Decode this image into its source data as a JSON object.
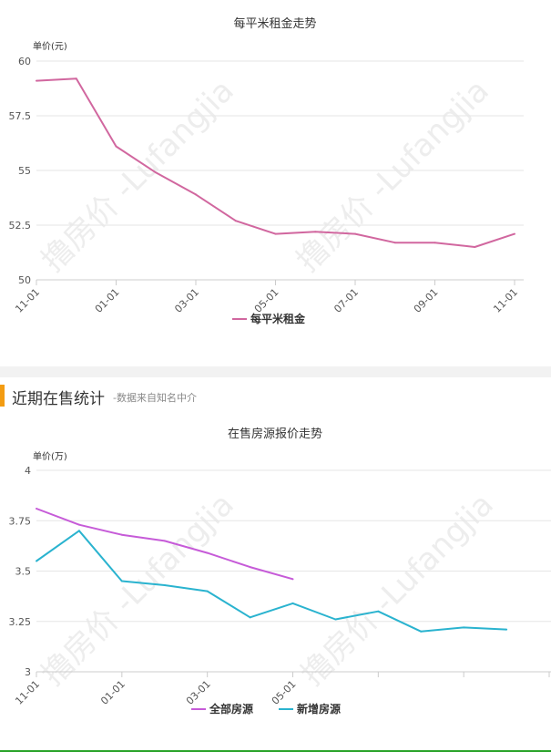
{
  "section": {
    "title": "近期在售统计",
    "note": "-数据来自知名中介"
  },
  "watermark": "撸房价 -Lufangjia",
  "colors": {
    "rent": "#d1679f",
    "all_listings": "#c65bd8",
    "new_listings": "#2ab3cf",
    "grid": "#e6e6e6",
    "section_bar": "#f39c12"
  },
  "chart_data": [
    {
      "type": "line",
      "title": "每平米租金走势",
      "ylabel": "单价(元)",
      "xlabel": "",
      "ylim": [
        50,
        60
      ],
      "yticks": [
        "60",
        "57.5",
        "55",
        "52.5",
        "50"
      ],
      "xtick_labels": [
        "11-01",
        "01-01",
        "03-01",
        "05-01",
        "07-01",
        "09-01",
        "11-01"
      ],
      "x": [
        "11-01",
        "12-01",
        "01-01",
        "02-01",
        "03-01",
        "04-01",
        "05-01",
        "06-01",
        "07-01",
        "08-01",
        "09-01",
        "10-01",
        "11-01"
      ],
      "grid": true,
      "legend_position": "bottom",
      "series": [
        {
          "name": "每平米租金",
          "color": "#d1679f",
          "values": [
            59.1,
            59.2,
            56.1,
            54.9,
            53.9,
            52.7,
            52.1,
            52.2,
            52.1,
            51.7,
            51.7,
            51.5,
            52.1
          ]
        }
      ]
    },
    {
      "type": "line",
      "title": "在售房源报价走势",
      "ylabel": "单价(万)",
      "xlabel": "",
      "ylim": [
        3,
        4
      ],
      "yticks": [
        "4",
        "3.75",
        "3.5",
        "3.25",
        "3"
      ],
      "xtick_labels": [
        "11-01",
        "01-01",
        "03-01",
        "05-01"
      ],
      "x": [
        "11-01",
        "12-01",
        "01-01",
        "02-01",
        "03-01",
        "04-01",
        "05-01",
        "06-01",
        "07-01",
        "08-01",
        "09-01",
        "10-01",
        "11-01"
      ],
      "grid": true,
      "legend_position": "bottom",
      "series": [
        {
          "name": "全部房源",
          "color": "#c65bd8",
          "values": [
            3.81,
            3.73,
            3.68,
            3.65,
            3.59,
            3.52,
            3.46,
            null,
            null,
            null,
            null,
            null,
            null
          ]
        },
        {
          "name": "新增房源",
          "color": "#2ab3cf",
          "values": [
            3.55,
            3.7,
            3.45,
            3.43,
            3.4,
            3.27,
            3.34,
            3.26,
            3.3,
            3.2,
            3.22,
            3.21,
            null
          ]
        }
      ]
    }
  ]
}
